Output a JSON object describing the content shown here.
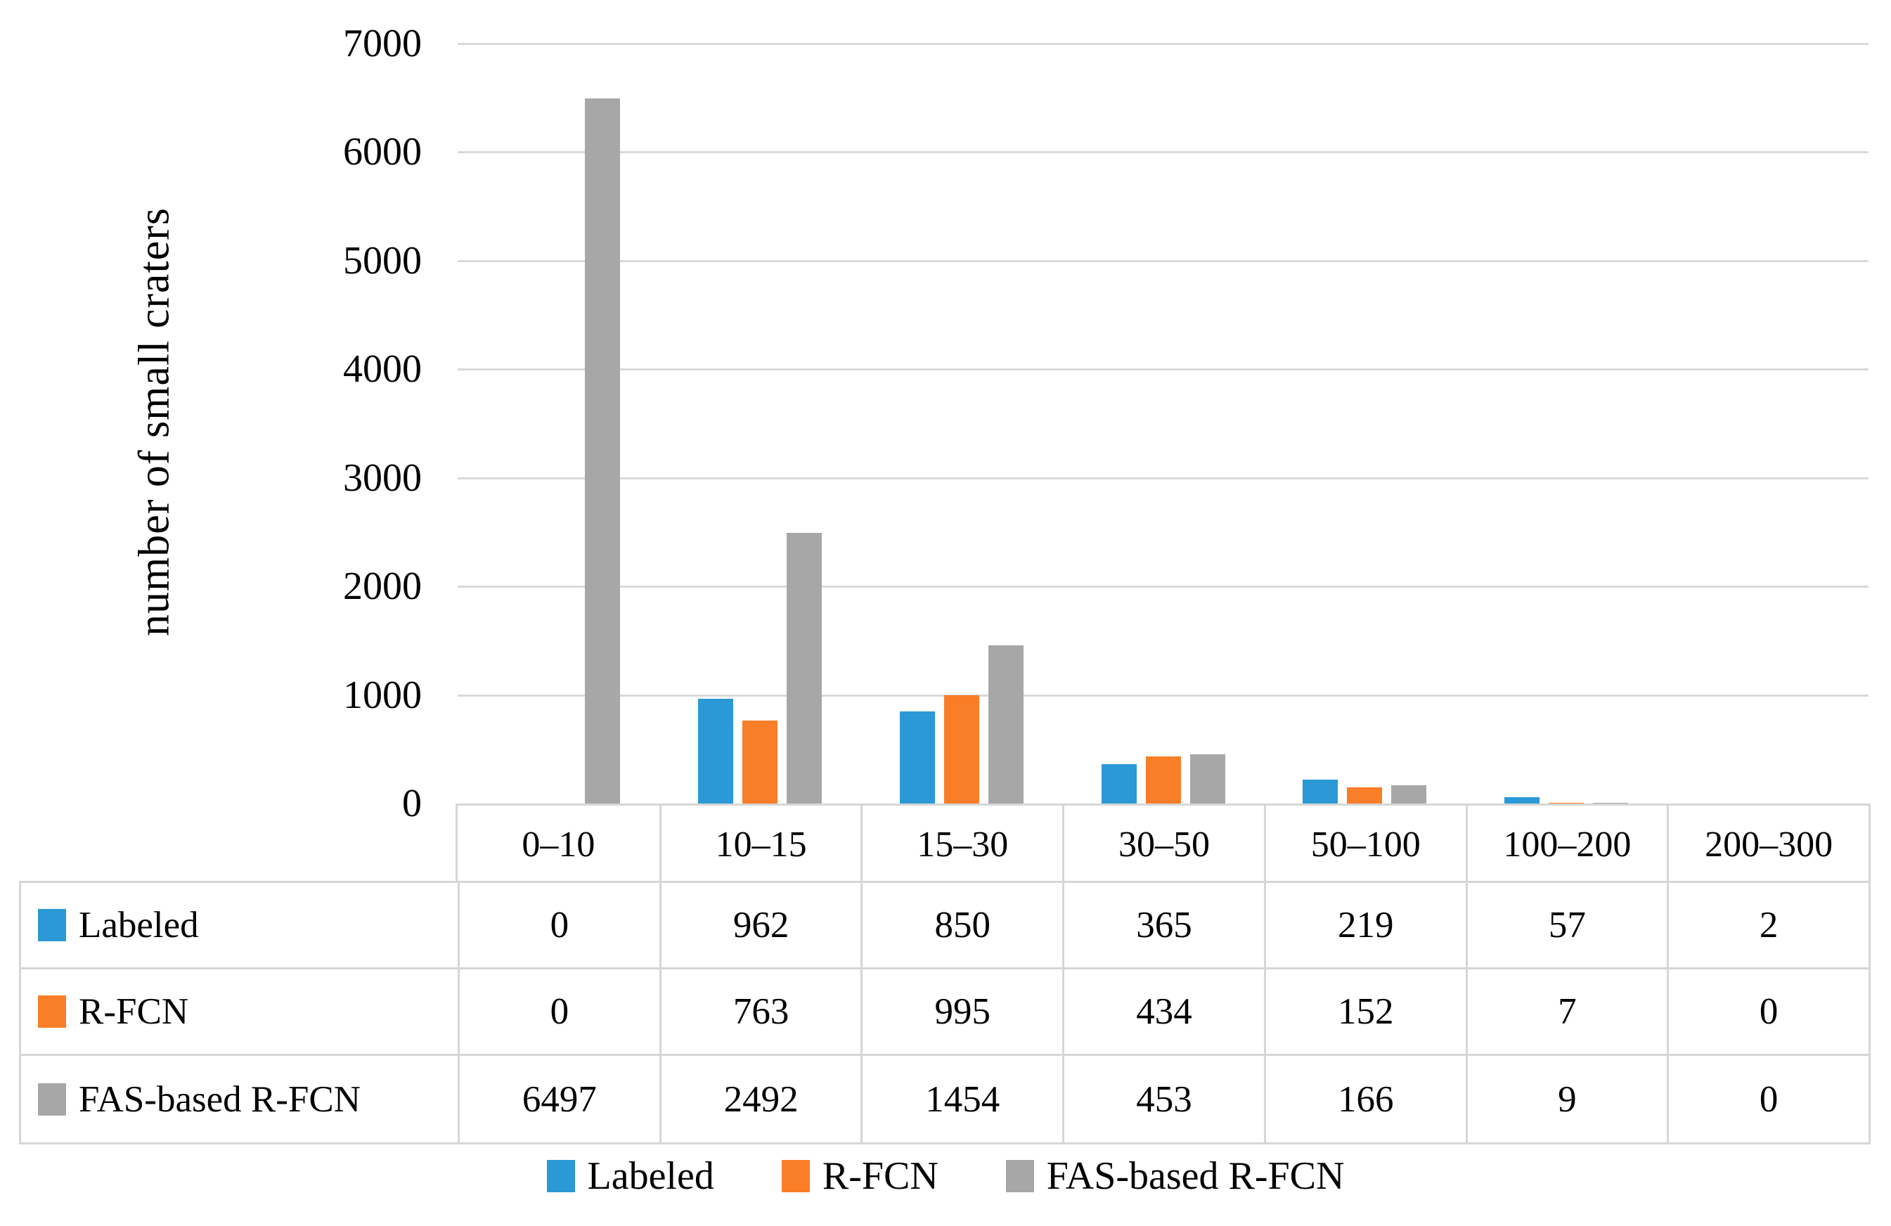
{
  "chart_data": {
    "type": "bar",
    "title": "",
    "ylabel": "number of small craters",
    "xlabel": "",
    "categories": [
      "0–10",
      "10–15",
      "15–30",
      "30–50",
      "50–100",
      "100–200",
      "200–300"
    ],
    "series": [
      {
        "name": "Labeled",
        "color": "#2A99D6",
        "values": [
          0,
          962,
          850,
          365,
          219,
          57,
          2
        ]
      },
      {
        "name": "R-FCN",
        "color": "#FA7D28",
        "values": [
          0,
          763,
          995,
          434,
          152,
          7,
          0
        ]
      },
      {
        "name": "FAS-based R-FCN",
        "color": "#A7A7A7",
        "values": [
          6497,
          2492,
          1454,
          453,
          166,
          9,
          0
        ]
      }
    ],
    "ylim": [
      0,
      7000
    ],
    "yticks": [
      0,
      1000,
      2000,
      3000,
      4000,
      5000,
      6000,
      7000
    ],
    "grid": true,
    "legend_position": "bottom",
    "data_table_shown": true
  },
  "colors": {
    "gridline": "#D9D9D9",
    "table_border": "#D6D6D6",
    "text": "#000000",
    "background": "#FFFFFF"
  }
}
